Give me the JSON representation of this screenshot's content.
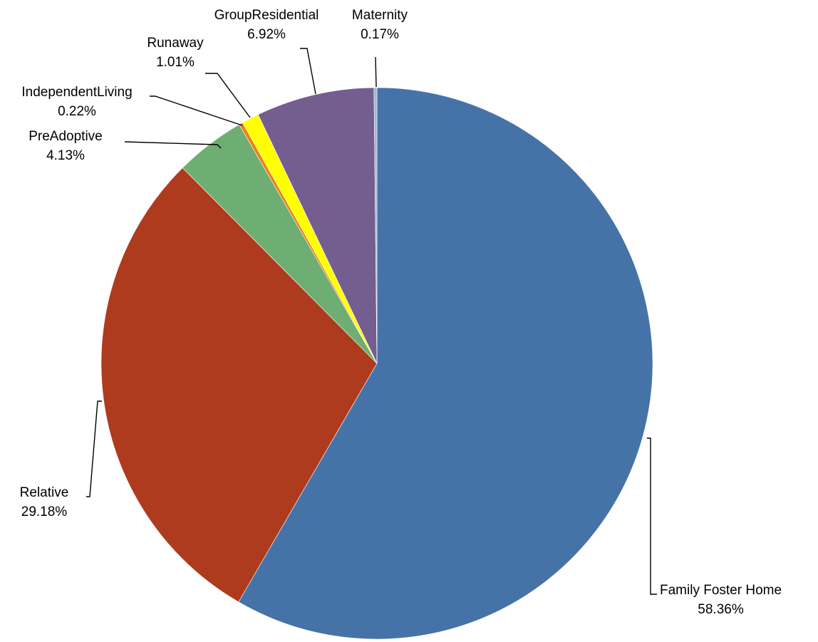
{
  "chart_data": {
    "type": "pie",
    "title": "",
    "start_angle_deg": 0,
    "direction": "clockwise",
    "legend": "none",
    "slices": [
      {
        "label": "Family Foster Home",
        "value": 58.36,
        "percent_label": "58.36%",
        "color": "#4673A7"
      },
      {
        "label": "Relative",
        "value": 29.18,
        "percent_label": "29.18%",
        "color": "#AE3B1E"
      },
      {
        "label": "PreAdoptive",
        "value": 4.13,
        "percent_label": "4.13%",
        "color": "#6EAE73"
      },
      {
        "label": "IndependentLiving",
        "value": 0.22,
        "percent_label": "0.22%",
        "color": "#F07F09"
      },
      {
        "label": "Runaway",
        "value": 1.01,
        "percent_label": "1.01%",
        "color": "#FFFF00"
      },
      {
        "label": "GroupResidential",
        "value": 6.92,
        "percent_label": "6.92%",
        "color": "#735E8F"
      },
      {
        "label": "Maternity",
        "value": 0.17,
        "percent_label": "0.17%",
        "color": "#A2B4D8"
      }
    ]
  }
}
